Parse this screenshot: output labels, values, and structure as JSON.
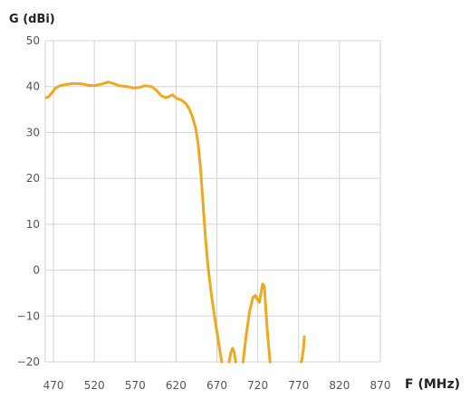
{
  "chart_data": {
    "type": "line",
    "title": "",
    "ylabel": "G (dBi)",
    "xlabel": "F (MHz)",
    "xlim": [
      460,
      870
    ],
    "ylim": [
      -20,
      50
    ],
    "x_ticks": [
      "470",
      "520",
      "570",
      "620",
      "670",
      "720",
      "770",
      "820",
      "870"
    ],
    "y_ticks": [
      "50",
      "40",
      "30",
      "20",
      "10",
      "0",
      "-10",
      "-20"
    ],
    "grid": true,
    "line_color": "#f0a820",
    "grid_color": "#d4d4d4",
    "series": [
      {
        "segments": [
          [
            [
              460,
              37.5
            ],
            [
              464,
              37.8
            ],
            [
              468,
              38.6
            ],
            [
              472,
              39.6
            ],
            [
              478,
              40.2
            ],
            [
              486,
              40.5
            ],
            [
              495,
              40.7
            ],
            [
              505,
              40.6
            ],
            [
              512,
              40.3
            ],
            [
              520,
              40.2
            ],
            [
              530,
              40.6
            ],
            [
              537,
              41.0
            ],
            [
              543,
              40.7
            ],
            [
              550,
              40.2
            ],
            [
              560,
              40.0
            ],
            [
              568,
              39.7
            ],
            [
              575,
              39.8
            ],
            [
              582,
              40.2
            ],
            [
              590,
              40.0
            ],
            [
              596,
              39.2
            ],
            [
              602,
              38.0
            ],
            [
              607,
              37.6
            ],
            [
              612,
              37.9
            ],
            [
              616,
              38.2
            ],
            [
              620,
              37.5
            ],
            [
              627,
              37.0
            ],
            [
              632,
              36.3
            ],
            [
              636,
              35.2
            ],
            [
              640,
              33.5
            ],
            [
              644,
              31.0
            ],
            [
              647,
              27.5
            ],
            [
              650,
              22.0
            ],
            [
              653,
              14.5
            ],
            [
              656,
              7.0
            ],
            [
              659,
              1.0
            ],
            [
              663,
              -5.0
            ],
            [
              667,
              -10.0
            ],
            [
              671,
              -14.5
            ],
            [
              674,
              -18.0
            ],
            [
              676,
              -20.0
            ]
          ],
          [
            [
              685,
              -20.0
            ],
            [
              687,
              -18.0
            ],
            [
              689,
              -17.0
            ],
            [
              691,
              -17.8
            ],
            [
              693,
              -20.0
            ]
          ],
          [
            [
              702,
              -20.0
            ],
            [
              706,
              -14.0
            ],
            [
              710,
              -9.0
            ],
            [
              714,
              -6.0
            ],
            [
              717,
              -5.5
            ],
            [
              720,
              -6.5
            ],
            [
              722,
              -7.0
            ],
            [
              724,
              -5.0
            ],
            [
              726,
              -3.0
            ],
            [
              728,
              -3.5
            ],
            [
              730,
              -9.0
            ],
            [
              732,
              -14.0
            ],
            [
              734,
              -18.0
            ],
            [
              735,
              -20.0
            ]
          ],
          [
            [
              773,
              -20.0
            ],
            [
              774,
              -19.5
            ],
            [
              776,
              -17.0
            ],
            [
              777,
              -14.5
            ]
          ]
        ]
      }
    ]
  }
}
